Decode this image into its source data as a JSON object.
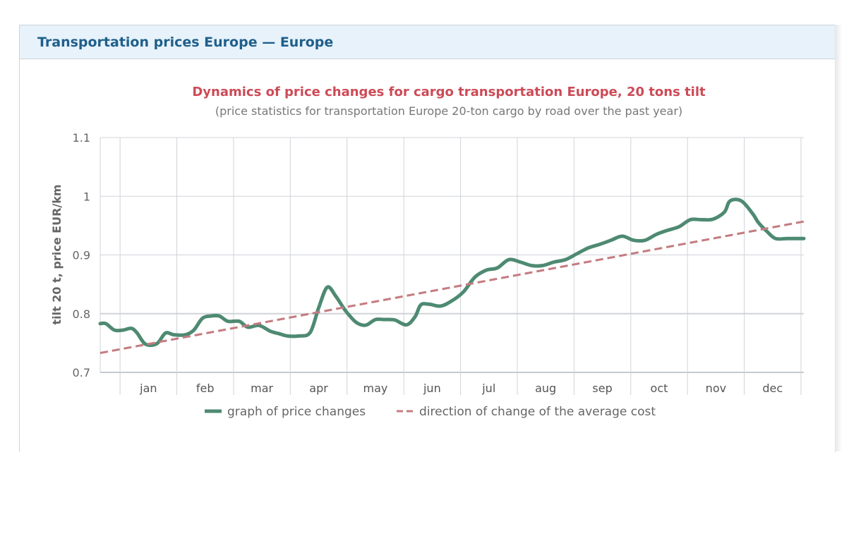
{
  "panel": {
    "title": "Transportation prices Europe — Europe"
  },
  "chart_data": {
    "type": "line",
    "title": "Dynamics of price changes for cargo transportation Europe, 20 tons tilt",
    "subtitle": "(price statistics for transportation Europe 20-ton cargo by road over the past year)",
    "ylabel": "tilt 20 t, price EUR/km",
    "xlabel": "",
    "ylim": [
      0.7,
      1.1
    ],
    "yticks": [
      "0.7",
      "0.8",
      "0.9",
      "1",
      "1.1"
    ],
    "categories": [
      "jan",
      "feb",
      "mar",
      "apr",
      "may",
      "jun",
      "jul",
      "aug",
      "sep",
      "oct",
      "nov",
      "dec"
    ],
    "grid": true,
    "legend_position": "bottom",
    "colors": {
      "price": "#4e8a72",
      "trend": "#c47c80",
      "grid": "#d0d3d8",
      "title": "#cc4b57"
    },
    "series": [
      {
        "name": "graph of price changes",
        "style": "solid",
        "x": [
          0.0,
          0.1,
          0.25,
          0.4,
          0.55,
          0.65,
          0.8,
          1.0,
          1.15,
          1.3,
          1.5,
          1.65,
          1.8,
          1.95,
          2.1,
          2.25,
          2.45,
          2.6,
          2.8,
          3.0,
          3.15,
          3.3,
          3.5,
          3.7,
          3.85,
          4.0,
          4.15,
          4.3,
          4.4,
          4.5,
          4.6,
          4.7,
          4.85,
          5.0,
          5.1,
          5.2,
          5.4,
          5.55,
          5.65,
          5.8,
          6.0,
          6.2,
          6.4,
          6.6,
          6.8,
          7.0,
          7.2,
          7.4,
          7.6,
          7.8,
          8.0,
          8.2,
          8.4,
          8.6,
          8.8,
          9.0,
          9.2,
          9.4,
          9.6,
          9.8,
          10.0,
          10.2,
          10.4,
          10.6,
          10.8,
          11.0,
          11.1,
          11.3,
          11.5,
          11.6,
          11.75,
          11.9,
          12.1,
          12.3,
          12.4
        ],
        "values": [
          0.783,
          0.783,
          0.772,
          0.772,
          0.775,
          0.767,
          0.748,
          0.749,
          0.767,
          0.764,
          0.764,
          0.772,
          0.792,
          0.796,
          0.796,
          0.787,
          0.787,
          0.777,
          0.78,
          0.77,
          0.766,
          0.762,
          0.762,
          0.768,
          0.81,
          0.845,
          0.83,
          0.808,
          0.796,
          0.786,
          0.781,
          0.781,
          0.79,
          0.79,
          0.79,
          0.789,
          0.781,
          0.795,
          0.815,
          0.816,
          0.813,
          0.822,
          0.837,
          0.862,
          0.874,
          0.878,
          0.892,
          0.888,
          0.882,
          0.882,
          0.888,
          0.892,
          0.902,
          0.912,
          0.918,
          0.925,
          0.932,
          0.925,
          0.925,
          0.935,
          0.942,
          0.948,
          0.96,
          0.96,
          0.961,
          0.973,
          0.992,
          0.992,
          0.97,
          0.955,
          0.94,
          0.928,
          0.928,
          0.928,
          0.928
        ]
      },
      {
        "name": "direction of change of the average cost",
        "style": "dashed",
        "x": [
          0.0,
          12.4
        ],
        "values": [
          0.733,
          0.957
        ]
      }
    ]
  }
}
